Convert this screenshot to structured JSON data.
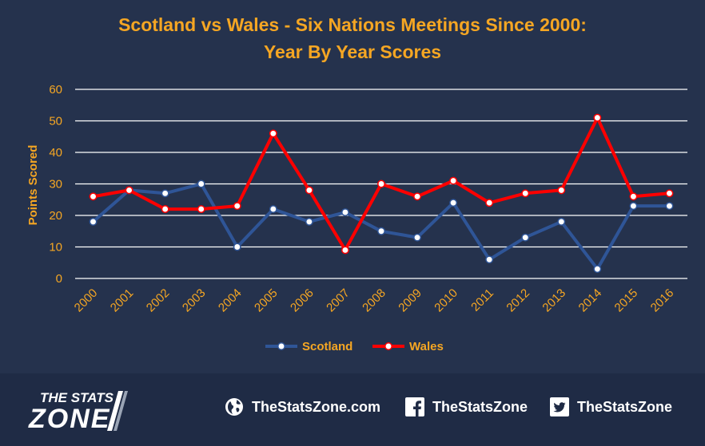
{
  "chart_data": {
    "type": "line",
    "title_lines": [
      "Scotland vs Wales - Six Nations Meetings Since 2000:",
      "Year By Year Scores"
    ],
    "ylabel": "Points Scored",
    "xlabel": "",
    "ylim": [
      0,
      60
    ],
    "yticks": [
      0,
      10,
      20,
      30,
      40,
      50,
      60
    ],
    "categories": [
      "2000",
      "2001",
      "2002",
      "2003",
      "2004",
      "2005",
      "2006",
      "2007",
      "2008",
      "2009",
      "2010",
      "2011",
      "2012",
      "2013",
      "2014",
      "2015",
      "2016"
    ],
    "series": [
      {
        "name": "Scotland",
        "color": "#2f5597",
        "values": [
          18,
          28,
          27,
          30,
          10,
          22,
          18,
          21,
          15,
          13,
          24,
          6,
          13,
          18,
          3,
          23,
          23
        ]
      },
      {
        "name": "Wales",
        "color": "#ff0000",
        "values": [
          26,
          28,
          22,
          22,
          23,
          46,
          28,
          9,
          30,
          26,
          31,
          24,
          27,
          28,
          51,
          26,
          27
        ]
      }
    ],
    "grid": true,
    "legend_position": "bottom-center",
    "colors": {
      "title": "#f5a623",
      "tick_labels": "#f5a623",
      "grid": "#ffffff",
      "background": "#25324d"
    }
  },
  "footer": {
    "brand_top": "THE STATS",
    "brand_bottom": "ZONE",
    "website": "TheStatsZone.com",
    "facebook": "TheStatsZone",
    "twitter": "TheStatsZone",
    "icons": [
      "globe-icon",
      "facebook-icon",
      "twitter-icon"
    ]
  }
}
